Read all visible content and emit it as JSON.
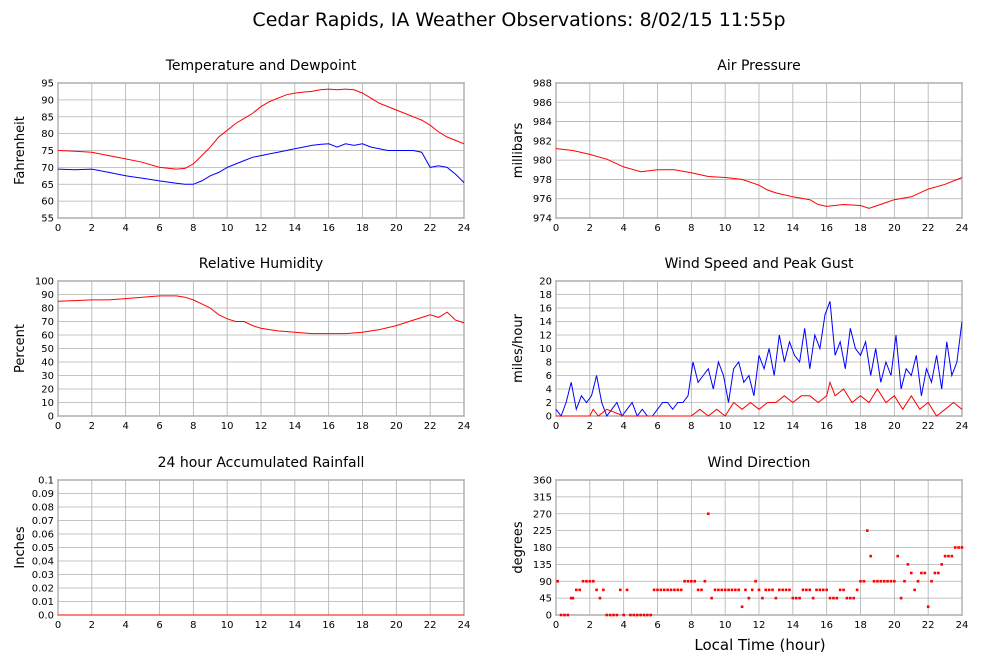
{
  "page": {
    "title": "Cedar Rapids, IA Weather Observations: 8/02/15 11:55p",
    "x_axis_label": "Local Time (hour)"
  },
  "chart_data": [
    {
      "id": "temp",
      "type": "line",
      "title": "Temperature and Dewpoint",
      "ylabel": "Fahrenheit",
      "xlim": [
        0,
        24
      ],
      "ylim": [
        55,
        95
      ],
      "xticks": [
        0,
        2,
        4,
        6,
        8,
        10,
        12,
        14,
        16,
        18,
        20,
        22,
        24
      ],
      "yticks": [
        55,
        60,
        65,
        70,
        75,
        80,
        85,
        90,
        95
      ],
      "grid": true,
      "series": [
        {
          "color": "#ff0000",
          "x": [
            0,
            1,
            2,
            3,
            4,
            5,
            6,
            7,
            7.5,
            8,
            8.5,
            9,
            9.5,
            10,
            10.5,
            11,
            11.5,
            12,
            12.5,
            13,
            13.5,
            14,
            14.5,
            15,
            15.5,
            16,
            16.5,
            17,
            17.5,
            18,
            18.5,
            19,
            19.5,
            20,
            20.5,
            21,
            21.5,
            22,
            22.5,
            23,
            23.5,
            24
          ],
          "y": [
            75,
            74.8,
            74.5,
            73.5,
            72.5,
            71.5,
            70,
            69.5,
            69.7,
            71,
            73.5,
            76,
            79,
            81,
            83,
            84.5,
            86,
            88,
            89.5,
            90.5,
            91.5,
            92,
            92.3,
            92.5,
            93,
            93.2,
            93,
            93.2,
            93,
            92,
            90.5,
            89,
            88,
            87,
            86,
            85,
            84,
            82.5,
            80.5,
            79,
            78,
            77
          ]
        },
        {
          "color": "#0000ff",
          "x": [
            0,
            1,
            2,
            3,
            4,
            5,
            6,
            7,
            7.5,
            8,
            8.5,
            9,
            9.5,
            10,
            10.5,
            11,
            11.5,
            12,
            12.5,
            13,
            13.5,
            14,
            14.5,
            15,
            15.5,
            16,
            16.5,
            17,
            17.5,
            18,
            18.5,
            19,
            19.5,
            20,
            20.5,
            21,
            21.5,
            22,
            22.5,
            23,
            23.5,
            24
          ],
          "y": [
            69.5,
            69.3,
            69.5,
            68.5,
            67.5,
            66.8,
            66,
            65.3,
            65,
            65,
            66,
            67.5,
            68.5,
            70,
            71,
            72,
            73,
            73.5,
            74,
            74.5,
            75,
            75.5,
            76,
            76.5,
            76.8,
            77,
            76,
            77,
            76.5,
            77,
            76,
            75.5,
            75,
            75,
            75,
            75,
            74.5,
            70,
            70.5,
            70,
            68,
            65.5
          ]
        }
      ]
    },
    {
      "id": "pressure",
      "type": "line",
      "title": "Air Pressure",
      "ylabel": "millibars",
      "xlim": [
        0,
        24
      ],
      "ylim": [
        974,
        988
      ],
      "xticks": [
        0,
        2,
        4,
        6,
        8,
        10,
        12,
        14,
        16,
        18,
        20,
        22,
        24
      ],
      "yticks": [
        974,
        976,
        978,
        980,
        982,
        984,
        986,
        988
      ],
      "grid": true,
      "series": [
        {
          "color": "#ff0000",
          "x": [
            0,
            1,
            2,
            3,
            4,
            5,
            6,
            7,
            8,
            9,
            10,
            11,
            12,
            12.5,
            13,
            14,
            15,
            15.5,
            16,
            17,
            18,
            18.5,
            19,
            20,
            21,
            22,
            23,
            24
          ],
          "y": [
            981.2,
            981,
            980.6,
            980.1,
            979.3,
            978.8,
            979,
            979,
            978.7,
            978.3,
            978.2,
            978,
            977.4,
            976.9,
            976.6,
            976.2,
            975.9,
            975.4,
            975.2,
            975.4,
            975.3,
            975,
            975.3,
            975.9,
            976.2,
            977,
            977.5,
            978.2
          ]
        }
      ]
    },
    {
      "id": "humidity",
      "type": "line",
      "title": "Relative Humidity",
      "ylabel": "Percent",
      "xlim": [
        0,
        24
      ],
      "ylim": [
        0,
        100
      ],
      "xticks": [
        0,
        2,
        4,
        6,
        8,
        10,
        12,
        14,
        16,
        18,
        20,
        22,
        24
      ],
      "yticks": [
        0,
        10,
        20,
        30,
        40,
        50,
        60,
        70,
        80,
        90,
        100
      ],
      "grid": true,
      "series": [
        {
          "color": "#ff0000",
          "x": [
            0,
            1,
            2,
            3,
            4,
            5,
            6,
            7,
            7.5,
            8,
            8.5,
            9,
            9.5,
            10,
            10.5,
            11,
            11.5,
            12,
            12.5,
            13,
            14,
            15,
            16,
            17,
            18,
            18.5,
            19,
            20,
            21,
            22,
            22.5,
            23,
            23.5,
            24
          ],
          "y": [
            85,
            85.5,
            86,
            86,
            87,
            88,
            89,
            89,
            88,
            86,
            83,
            80,
            75,
            72,
            70,
            70,
            67,
            65,
            64,
            63,
            62,
            61,
            61,
            61,
            62,
            63,
            64,
            67,
            71,
            75,
            73,
            77,
            71,
            69
          ]
        }
      ]
    },
    {
      "id": "wind",
      "type": "line",
      "title": "Wind Speed and Peak Gust",
      "ylabel": "miles/hour",
      "xlim": [
        0,
        24
      ],
      "ylim": [
        0,
        20
      ],
      "xticks": [
        0,
        2,
        4,
        6,
        8,
        10,
        12,
        14,
        16,
        18,
        20,
        22,
        24
      ],
      "yticks": [
        0,
        2,
        4,
        6,
        8,
        10,
        12,
        14,
        16,
        18,
        20
      ],
      "grid": true,
      "series": [
        {
          "color": "#0000ff",
          "x": [
            0,
            0.3,
            0.6,
            0.9,
            1.2,
            1.5,
            1.8,
            2.1,
            2.4,
            2.7,
            3,
            3.3,
            3.6,
            3.9,
            4.2,
            4.5,
            4.8,
            5.1,
            5.4,
            5.7,
            6,
            6.3,
            6.6,
            6.9,
            7.2,
            7.5,
            7.8,
            8.1,
            8.4,
            8.7,
            9,
            9.3,
            9.6,
            9.9,
            10.2,
            10.5,
            10.8,
            11.1,
            11.4,
            11.7,
            12,
            12.3,
            12.6,
            12.9,
            13.2,
            13.5,
            13.8,
            14.1,
            14.4,
            14.7,
            15,
            15.3,
            15.6,
            15.9,
            16.2,
            16.5,
            16.8,
            17.1,
            17.4,
            17.7,
            18,
            18.3,
            18.6,
            18.9,
            19.2,
            19.5,
            19.8,
            20.1,
            20.4,
            20.7,
            21,
            21.3,
            21.6,
            21.9,
            22.2,
            22.5,
            22.8,
            23.1,
            23.4,
            23.7,
            24
          ],
          "y": [
            1,
            0,
            2,
            5,
            1,
            3,
            2,
            3,
            6,
            2,
            0,
            1,
            2,
            0,
            1,
            2,
            0,
            1,
            0,
            0,
            1,
            2,
            2,
            1,
            2,
            2,
            3,
            8,
            5,
            6,
            7,
            4,
            8,
            6,
            2,
            7,
            8,
            5,
            6,
            3,
            9,
            7,
            10,
            6,
            12,
            8,
            11,
            9,
            8,
            13,
            7,
            12,
            10,
            15,
            17,
            9,
            11,
            7,
            13,
            10,
            9,
            11,
            6,
            10,
            5,
            8,
            6,
            12,
            4,
            7,
            6,
            9,
            3,
            7,
            5,
            9,
            4,
            11,
            6,
            8,
            14
          ]
        },
        {
          "color": "#ff0000",
          "x": [
            0,
            1,
            2,
            2.2,
            2.5,
            3,
            4,
            5,
            6,
            7,
            8,
            8.5,
            9,
            9.5,
            10,
            10.5,
            11,
            11.5,
            12,
            12.5,
            13,
            13.5,
            14,
            14.5,
            15,
            15.5,
            16,
            16.2,
            16.5,
            17,
            17.5,
            18,
            18.5,
            19,
            19.5,
            20,
            20.5,
            21,
            21.5,
            22,
            22.5,
            23,
            23.5,
            24
          ],
          "y": [
            0,
            0,
            0,
            1,
            0,
            1,
            0,
            0,
            0,
            0,
            0,
            1,
            0,
            1,
            0,
            2,
            1,
            2,
            1,
            2,
            2,
            3,
            2,
            3,
            3,
            2,
            3,
            5,
            3,
            4,
            2,
            3,
            2,
            4,
            2,
            3,
            1,
            3,
            1,
            2,
            0,
            1,
            2,
            1
          ]
        }
      ]
    },
    {
      "id": "rain",
      "type": "line",
      "title": "24 hour Accumulated Rainfall",
      "ylabel": "Inches",
      "xlim": [
        0,
        24
      ],
      "ylim": [
        0,
        0.1
      ],
      "xticks": [
        0,
        2,
        4,
        6,
        8,
        10,
        12,
        14,
        16,
        18,
        20,
        22,
        24
      ],
      "yticks": [
        "0.0",
        "0.01",
        "0.02",
        "0.03",
        "0.04",
        "0.05",
        "0.06",
        "0.07",
        "0.08",
        "0.09",
        "0.1"
      ],
      "grid": true,
      "series": [
        {
          "color": "#ff0000",
          "x": [
            0,
            24
          ],
          "y": [
            0,
            0
          ]
        }
      ]
    },
    {
      "id": "direction",
      "type": "scatter",
      "title": "Wind Direction",
      "ylabel": "degrees",
      "xlim": [
        0,
        24
      ],
      "ylim": [
        0,
        360
      ],
      "xticks": [
        0,
        2,
        4,
        6,
        8,
        10,
        12,
        14,
        16,
        18,
        20,
        22,
        24
      ],
      "yticks": [
        0,
        45,
        90,
        135,
        180,
        225,
        270,
        315,
        360
      ],
      "grid": true,
      "series": [
        {
          "color": "#ff0000",
          "x": [
            0.1,
            0.3,
            0.5,
            0.7,
            0.9,
            1.0,
            1.2,
            1.4,
            1.6,
            1.8,
            2.0,
            2.2,
            2.4,
            2.6,
            2.8,
            3.0,
            3.2,
            3.4,
            3.6,
            3.8,
            4.0,
            4.2,
            4.4,
            4.6,
            4.8,
            5.0,
            5.2,
            5.4,
            5.6,
            5.8,
            6.0,
            6.2,
            6.4,
            6.6,
            6.8,
            7.0,
            7.2,
            7.4,
            7.6,
            7.8,
            8.0,
            8.2,
            8.4,
            8.6,
            8.8,
            9.0,
            9.2,
            9.4,
            9.6,
            9.8,
            10.0,
            10.2,
            10.4,
            10.6,
            10.8,
            11.0,
            11.2,
            11.4,
            11.6,
            11.8,
            12.0,
            12.2,
            12.4,
            12.6,
            12.8,
            13.0,
            13.2,
            13.4,
            13.6,
            13.8,
            14.0,
            14.2,
            14.4,
            14.6,
            14.8,
            15.0,
            15.2,
            15.4,
            15.6,
            15.8,
            16.0,
            16.2,
            16.4,
            16.6,
            16.8,
            17.0,
            17.2,
            17.4,
            17.6,
            17.8,
            18.0,
            18.2,
            18.4,
            18.6,
            18.8,
            19.0,
            19.2,
            19.4,
            19.6,
            19.8,
            20.0,
            20.2,
            20.4,
            20.6,
            20.8,
            21.0,
            21.2,
            21.4,
            21.6,
            21.8,
            22.0,
            22.2,
            22.4,
            22.6,
            22.8,
            23.0,
            23.2,
            23.4,
            23.6,
            23.8,
            24.0
          ],
          "y": [
            90,
            0,
            0,
            0,
            45,
            45,
            67,
            67,
            90,
            90,
            90,
            90,
            67,
            45,
            67,
            0,
            0,
            0,
            0,
            67,
            0,
            67,
            0,
            0,
            0,
            0,
            0,
            0,
            0,
            67,
            67,
            67,
            67,
            67,
            67,
            67,
            67,
            67,
            90,
            90,
            90,
            90,
            67,
            67,
            90,
            270,
            45,
            67,
            67,
            67,
            67,
            67,
            67,
            67,
            67,
            22,
            67,
            45,
            67,
            90,
            67,
            45,
            67,
            67,
            67,
            45,
            67,
            67,
            67,
            67,
            45,
            45,
            45,
            67,
            67,
            67,
            45,
            67,
            67,
            67,
            67,
            45,
            45,
            45,
            67,
            67,
            45,
            45,
            45,
            67,
            90,
            90,
            225,
            157,
            90,
            90,
            90,
            90,
            90,
            90,
            90,
            157,
            45,
            90,
            135,
            112,
            67,
            90,
            112,
            112,
            22,
            90,
            112,
            112,
            135,
            157,
            157,
            157,
            180,
            180,
            180
          ]
        }
      ]
    }
  ]
}
